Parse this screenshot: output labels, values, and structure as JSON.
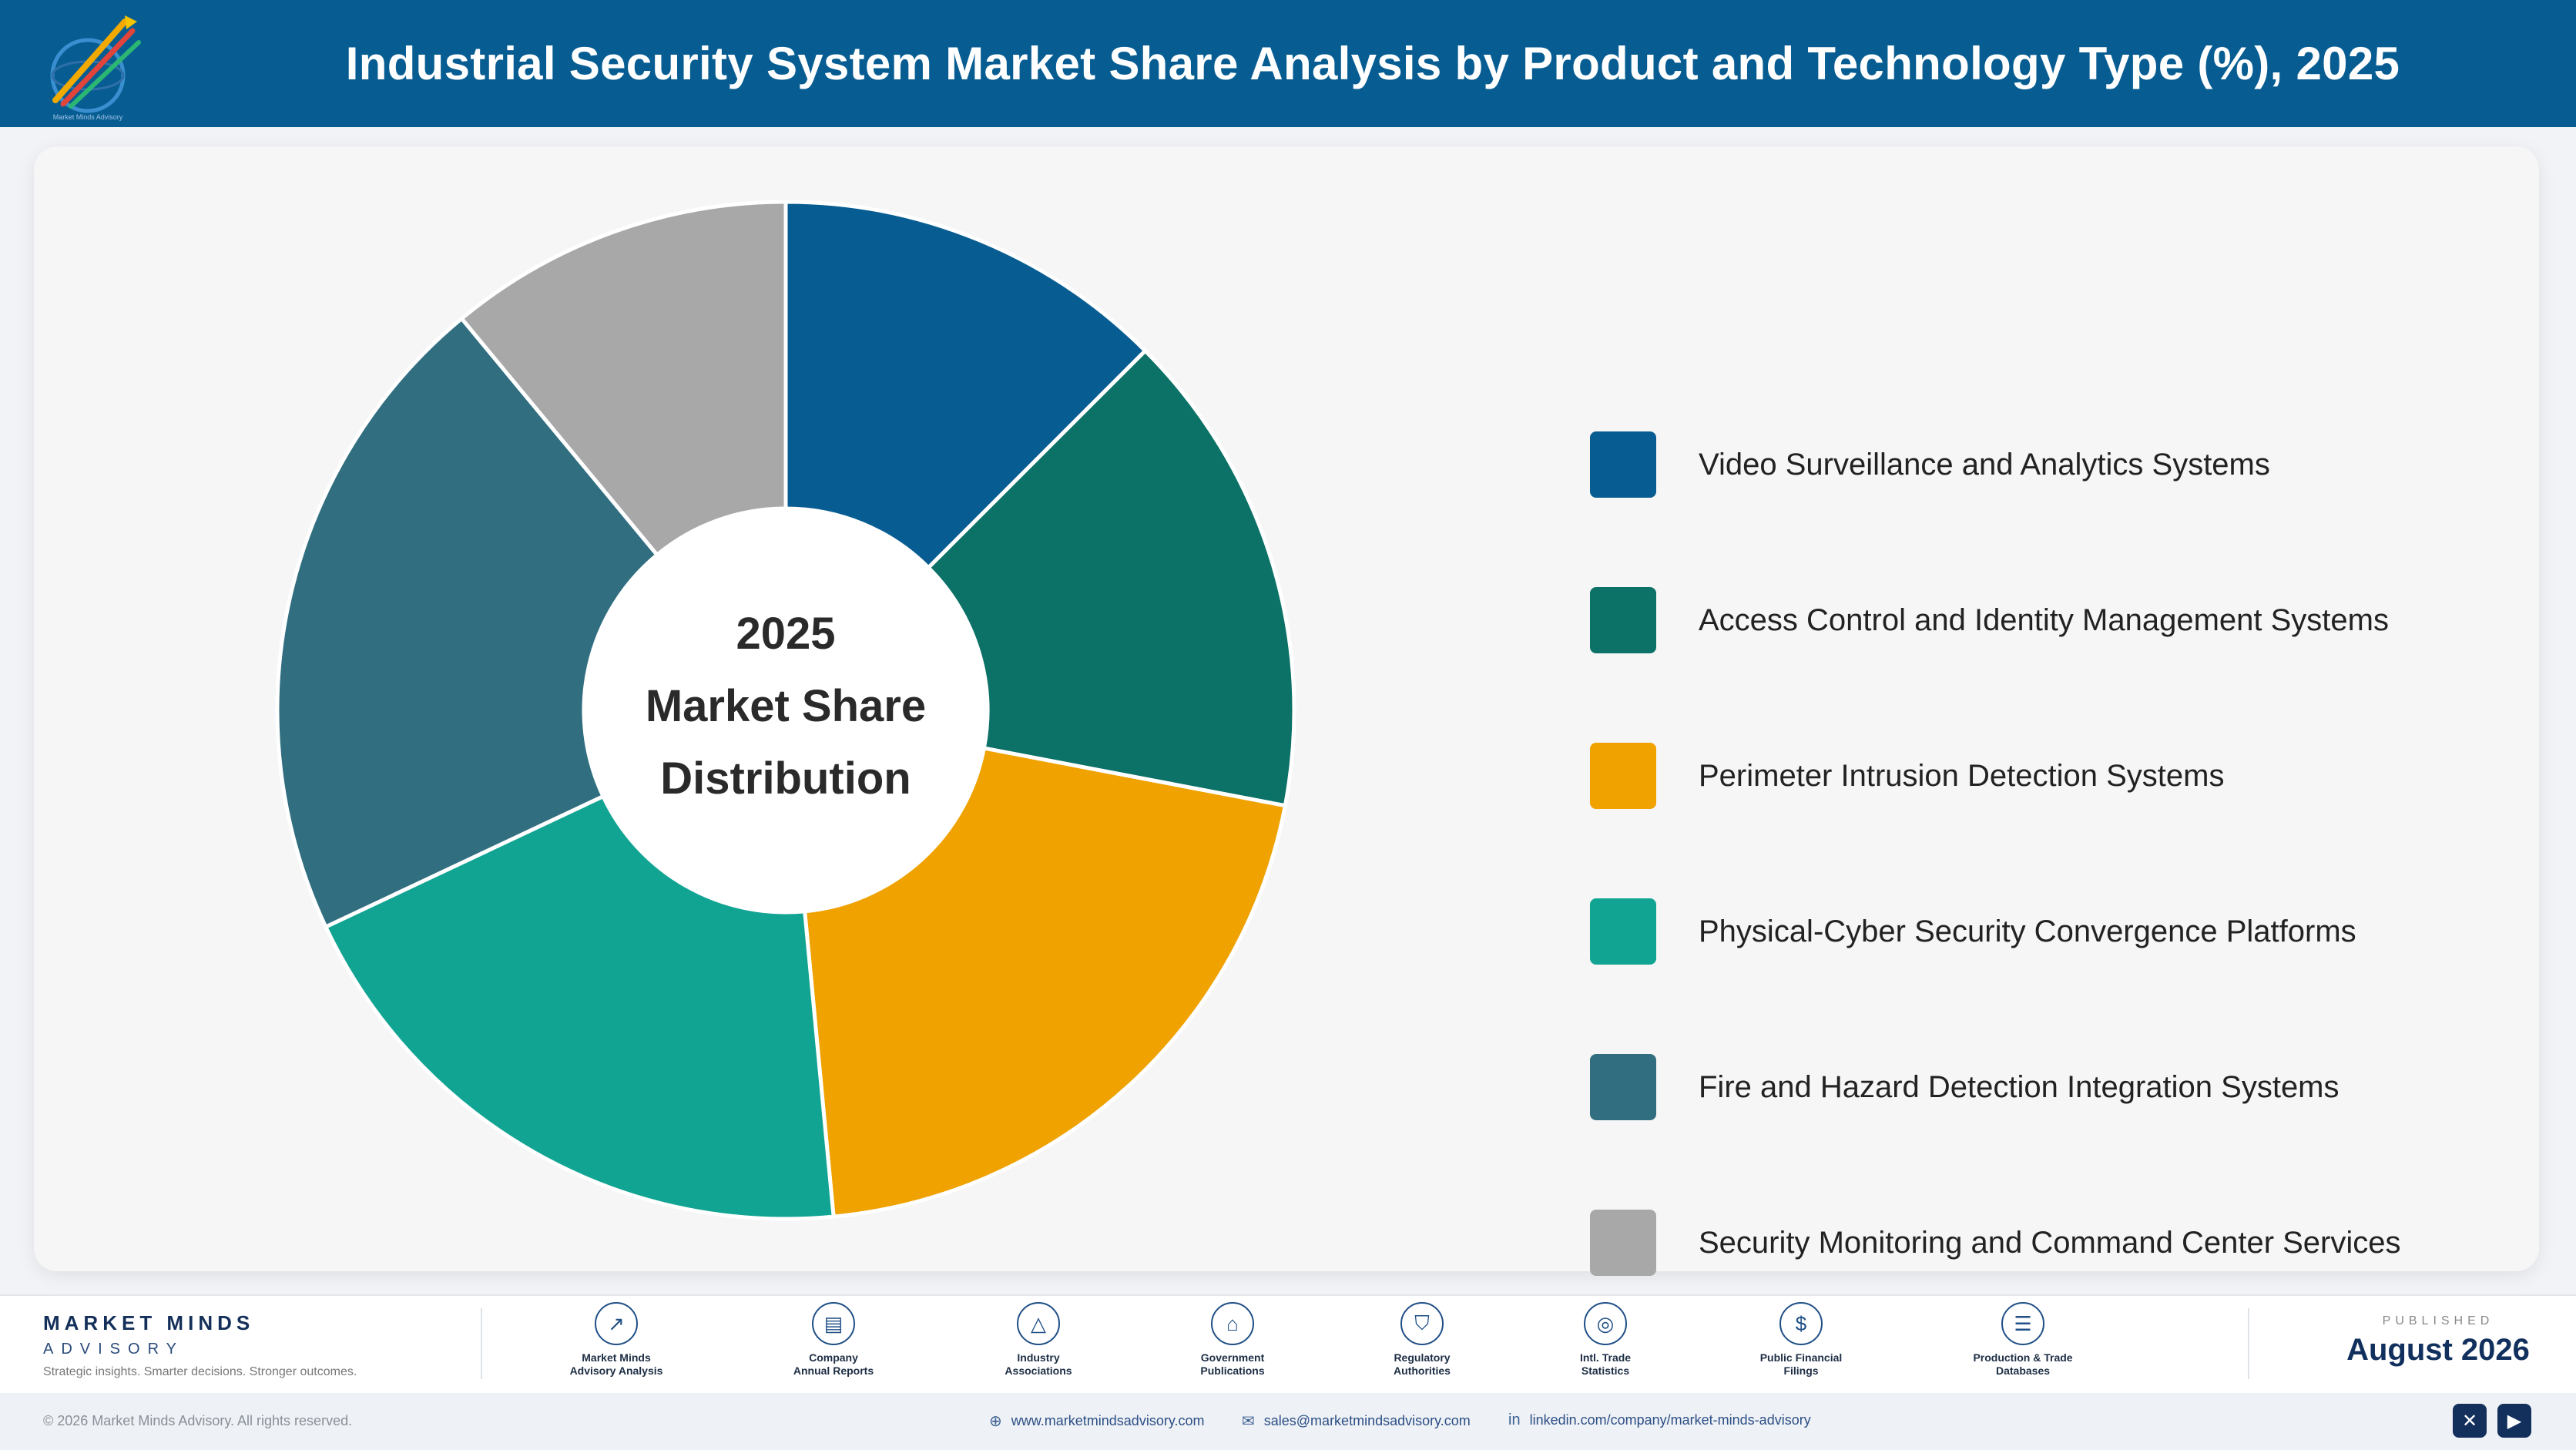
{
  "header": {
    "title": "Industrial Security System Market Share Analysis by Product and Technology Type (%), 2025",
    "logo_icon": "rocket-globe-logo-icon"
  },
  "chart_data": {
    "type": "pie",
    "title": "Industrial Security System Market Share Analysis by Product and Technology Type (%), 2025",
    "center_label": [
      "2025",
      "Market Share",
      "Distribution"
    ],
    "categories": [
      "Video Surveillance and Analytics Systems",
      "Access Control and Identity Management Systems",
      "Perimeter Intrusion Detection Systems",
      "Physical-Cyber Security Convergence Platforms",
      "Fire and Hazard Detection Integration Systems",
      "Security Monitoring and Command Center Services"
    ],
    "values": [
      12.5,
      15.5,
      20.5,
      19.5,
      21.0,
      11.0
    ],
    "colors": [
      "#075d92",
      "#0c7166",
      "#efa200",
      "#12a493",
      "#306e80",
      "#a8a8a8"
    ],
    "donut": true,
    "legend_position": "right"
  },
  "footer": {
    "brand_name": "MARKET MINDS",
    "brand_sub": "ADVISORY",
    "tagline": "Strategic insights. Smarter decisions. Stronger outcomes.",
    "sources": [
      {
        "icon": "trend-chart-icon",
        "glyph": "↗",
        "line1": "Market Minds",
        "line2": "Advisory Analysis"
      },
      {
        "icon": "document-icon",
        "glyph": "▤",
        "line1": "Company",
        "line2": "Annual Reports"
      },
      {
        "icon": "network-icon",
        "glyph": "△",
        "line1": "Industry",
        "line2": "Associations"
      },
      {
        "icon": "government-building-icon",
        "glyph": "⌂",
        "line1": "Government",
        "line2": "Publications"
      },
      {
        "icon": "shield-check-icon",
        "glyph": "⛉",
        "line1": "Regulatory",
        "line2": "Authorities"
      },
      {
        "icon": "globe-icon",
        "glyph": "◎",
        "line1": "Intl. Trade",
        "line2": "Statistics"
      },
      {
        "icon": "dollar-coin-icon",
        "glyph": "$",
        "line1": "Public Financial",
        "line2": "Filings"
      },
      {
        "icon": "database-icon",
        "glyph": "☰",
        "line1": "Production & Trade",
        "line2": "Databases"
      }
    ],
    "published_label": "PUBLISHED",
    "published_date": "August 2026",
    "copyright": "© 2026 Market Minds Advisory. All rights reserved.",
    "website": "www.marketmindsadvisory.com",
    "email": "sales@marketmindsadvisory.com",
    "linkedin": "linkedin.com/company/market-minds-advisory",
    "social_x_icon": "x-social-icon",
    "social_youtube_icon": "youtube-icon"
  }
}
